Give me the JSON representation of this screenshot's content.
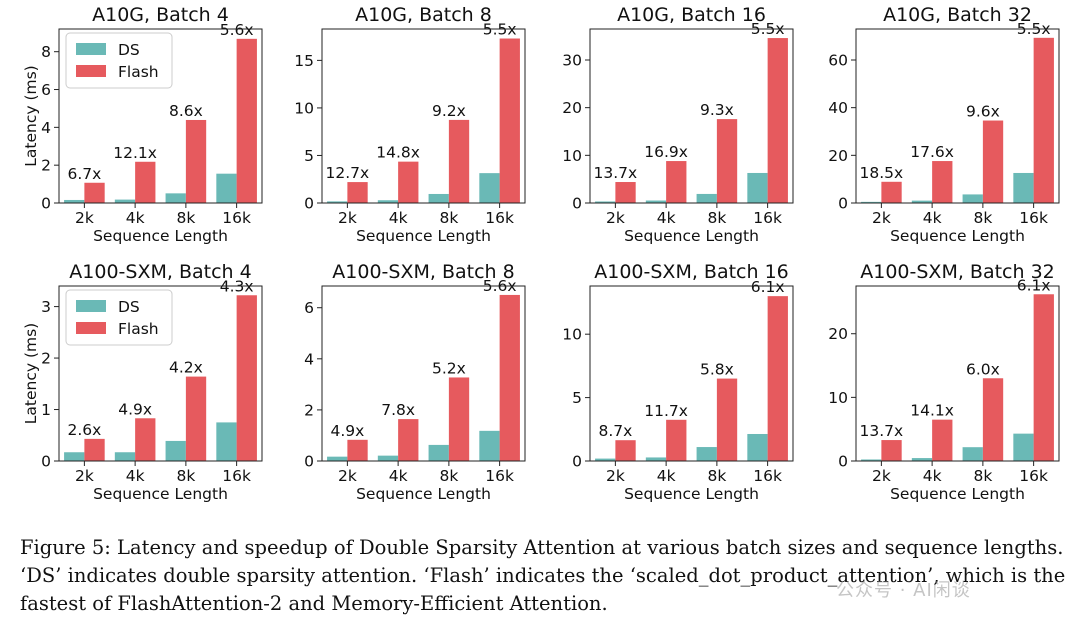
{
  "chart_data": [
    {
      "type": "bar",
      "title": "A10G, Batch 4",
      "categories": [
        "2k",
        "4k",
        "8k",
        "16k"
      ],
      "xlabel": "Sequence Length",
      "ylabel": "Latency (ms)",
      "ylim": [
        0,
        9.2
      ],
      "yticks": [
        0,
        2,
        4,
        6,
        8
      ],
      "legend": "top-left",
      "series": [
        {
          "name": "DS",
          "color": "#6ab9b6",
          "values": [
            0.16,
            0.18,
            0.51,
            1.55
          ]
        },
        {
          "name": "Flash",
          "color": "#e65a5e",
          "values": [
            1.07,
            2.18,
            4.39,
            8.68
          ]
        }
      ],
      "annotations": [
        "6.7x",
        "12.1x",
        "8.6x",
        "5.6x"
      ]
    },
    {
      "type": "bar",
      "title": "A10G, Batch 8",
      "categories": [
        "2k",
        "4k",
        "8k",
        "16k"
      ],
      "xlabel": "Sequence Length",
      "ylabel": "",
      "ylim": [
        0,
        18.3
      ],
      "yticks": [
        0,
        5,
        10,
        15
      ],
      "legend": "none",
      "series": [
        {
          "name": "DS",
          "color": "#6ab9b6",
          "values": [
            0.17,
            0.29,
            0.95,
            3.14
          ]
        },
        {
          "name": "Flash",
          "color": "#e65a5e",
          "values": [
            2.2,
            4.35,
            8.74,
            17.3
          ]
        }
      ],
      "annotations": [
        "12.7x",
        "14.8x",
        "9.2x",
        "5.5x"
      ]
    },
    {
      "type": "bar",
      "title": "A10G, Batch 16",
      "categories": [
        "2k",
        "4k",
        "8k",
        "16k"
      ],
      "xlabel": "Sequence Length",
      "ylabel": "",
      "ylim": [
        0,
        36.5
      ],
      "yticks": [
        0,
        10,
        20,
        30
      ],
      "legend": "none",
      "series": [
        {
          "name": "DS",
          "color": "#6ab9b6",
          "values": [
            0.32,
            0.52,
            1.9,
            6.3
          ]
        },
        {
          "name": "Flash",
          "color": "#e65a5e",
          "values": [
            4.4,
            8.8,
            17.6,
            34.6
          ]
        }
      ],
      "annotations": [
        "13.7x",
        "16.9x",
        "9.3x",
        "5.5x"
      ]
    },
    {
      "type": "bar",
      "title": "A10G, Batch 32",
      "categories": [
        "2k",
        "4k",
        "8k",
        "16k"
      ],
      "xlabel": "Sequence Length",
      "ylabel": "",
      "ylim": [
        0,
        73
      ],
      "yticks": [
        0,
        20,
        40,
        60
      ],
      "legend": "none",
      "series": [
        {
          "name": "DS",
          "color": "#6ab9b6",
          "values": [
            0.48,
            1.0,
            3.6,
            12.6
          ]
        },
        {
          "name": "Flash",
          "color": "#e65a5e",
          "values": [
            8.9,
            17.6,
            34.6,
            69.3
          ]
        }
      ],
      "annotations": [
        "18.5x",
        "17.6x",
        "9.6x",
        "5.5x"
      ]
    },
    {
      "type": "bar",
      "title": "A100-SXM, Batch 4",
      "categories": [
        "2k",
        "4k",
        "8k",
        "16k"
      ],
      "xlabel": "Sequence Length",
      "ylabel": "Latency (ms)",
      "ylim": [
        0,
        3.4
      ],
      "yticks": [
        0,
        1,
        2,
        3
      ],
      "legend": "top-left",
      "series": [
        {
          "name": "DS",
          "color": "#6ab9b6",
          "values": [
            0.17,
            0.17,
            0.39,
            0.75
          ]
        },
        {
          "name": "Flash",
          "color": "#e65a5e",
          "values": [
            0.43,
            0.83,
            1.64,
            3.22
          ]
        }
      ],
      "annotations": [
        "2.6x",
        "4.9x",
        "4.2x",
        "4.3x"
      ]
    },
    {
      "type": "bar",
      "title": "A100-SXM, Batch 8",
      "categories": [
        "2k",
        "4k",
        "8k",
        "16k"
      ],
      "xlabel": "Sequence Length",
      "ylabel": "",
      "ylim": [
        0,
        6.85
      ],
      "yticks": [
        0,
        2,
        4,
        6
      ],
      "legend": "none",
      "series": [
        {
          "name": "DS",
          "color": "#6ab9b6",
          "values": [
            0.17,
            0.21,
            0.63,
            1.18
          ]
        },
        {
          "name": "Flash",
          "color": "#e65a5e",
          "values": [
            0.83,
            1.64,
            3.27,
            6.5
          ]
        }
      ],
      "annotations": [
        "4.9x",
        "7.8x",
        "5.2x",
        "5.6x"
      ]
    },
    {
      "type": "bar",
      "title": "A100-SXM, Batch 16",
      "categories": [
        "2k",
        "4k",
        "8k",
        "16k"
      ],
      "xlabel": "Sequence Length",
      "ylabel": "",
      "ylim": [
        0,
        13.8
      ],
      "yticks": [
        0,
        5,
        10
      ],
      "legend": "none",
      "series": [
        {
          "name": "DS",
          "color": "#6ab9b6",
          "values": [
            0.19,
            0.28,
            1.1,
            2.13
          ]
        },
        {
          "name": "Flash",
          "color": "#e65a5e",
          "values": [
            1.64,
            3.25,
            6.5,
            13.0
          ]
        }
      ],
      "annotations": [
        "8.7x",
        "11.7x",
        "5.8x",
        "6.1x"
      ]
    },
    {
      "type": "bar",
      "title": "A100-SXM, Batch 32",
      "categories": [
        "2k",
        "4k",
        "8k",
        "16k"
      ],
      "xlabel": "Sequence Length",
      "ylabel": "",
      "ylim": [
        0,
        27.5
      ],
      "yticks": [
        0,
        10,
        20
      ],
      "legend": "none",
      "series": [
        {
          "name": "DS",
          "color": "#6ab9b6",
          "values": [
            0.24,
            0.46,
            2.17,
            4.3
          ]
        },
        {
          "name": "Flash",
          "color": "#e65a5e",
          "values": [
            3.29,
            6.5,
            13.0,
            26.2
          ]
        }
      ],
      "annotations": [
        "13.7x",
        "14.1x",
        "6.0x",
        "6.1x"
      ]
    }
  ],
  "caption": "Figure 5: Latency and speedup of Double Sparsity Attention at various batch sizes and sequence lengths. ‘DS’ indicates double sparsity attention. ‘Flash’ indicates the ‘scaled_dot_product_attention’, which is the fastest of FlashAttention-2 and Memory-Efficient Attention.",
  "watermark": "公众号 · AI闲谈"
}
